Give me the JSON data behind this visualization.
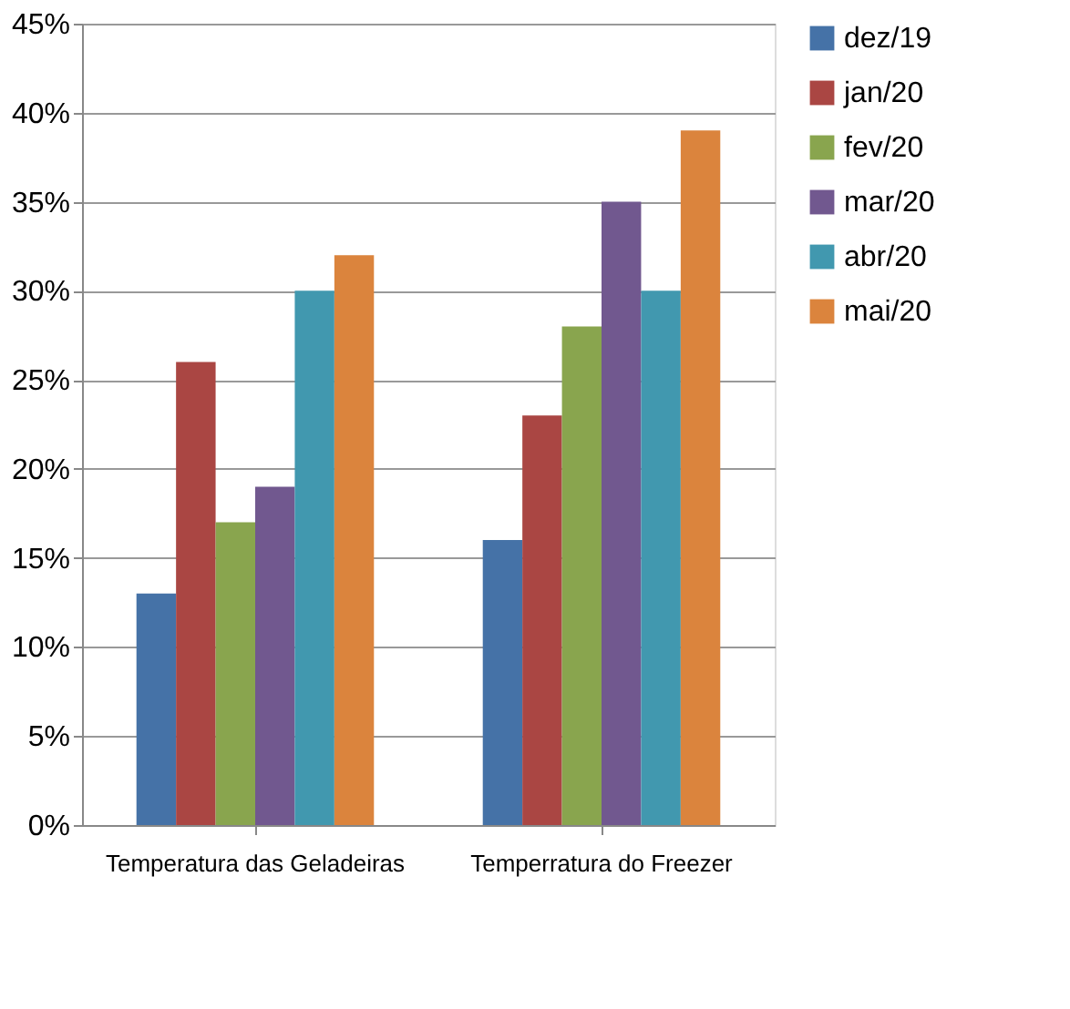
{
  "chart_data": {
    "type": "bar",
    "categories": [
      "Temperatura das Geladeiras",
      "Temperratura do Freezer"
    ],
    "series": [
      {
        "name": "dez/19",
        "color": "#4572a7",
        "values": [
          13,
          16
        ]
      },
      {
        "name": "jan/20",
        "color": "#aa4643",
        "values": [
          26,
          23
        ]
      },
      {
        "name": "fev/20",
        "color": "#89a54e",
        "values": [
          17,
          28
        ]
      },
      {
        "name": "mar/20",
        "color": "#71588f",
        "values": [
          19,
          35
        ]
      },
      {
        "name": "abr/20",
        "color": "#4198af",
        "values": [
          30,
          30
        ]
      },
      {
        "name": "mai/20",
        "color": "#db843d",
        "values": [
          32,
          39
        ]
      }
    ],
    "ylim": [
      0,
      45
    ],
    "yticks": [
      {
        "value": 0,
        "label": "0%"
      },
      {
        "value": 5,
        "label": "5%"
      },
      {
        "value": 10,
        "label": "10%"
      },
      {
        "value": 15,
        "label": "15%"
      },
      {
        "value": 20,
        "label": "20%"
      },
      {
        "value": 25,
        "label": "25%"
      },
      {
        "value": 30,
        "label": "30%"
      },
      {
        "value": 35,
        "label": "35%"
      },
      {
        "value": 40,
        "label": "40%"
      },
      {
        "value": 45,
        "label": "45%"
      }
    ],
    "grid": "y",
    "legend": "right"
  }
}
